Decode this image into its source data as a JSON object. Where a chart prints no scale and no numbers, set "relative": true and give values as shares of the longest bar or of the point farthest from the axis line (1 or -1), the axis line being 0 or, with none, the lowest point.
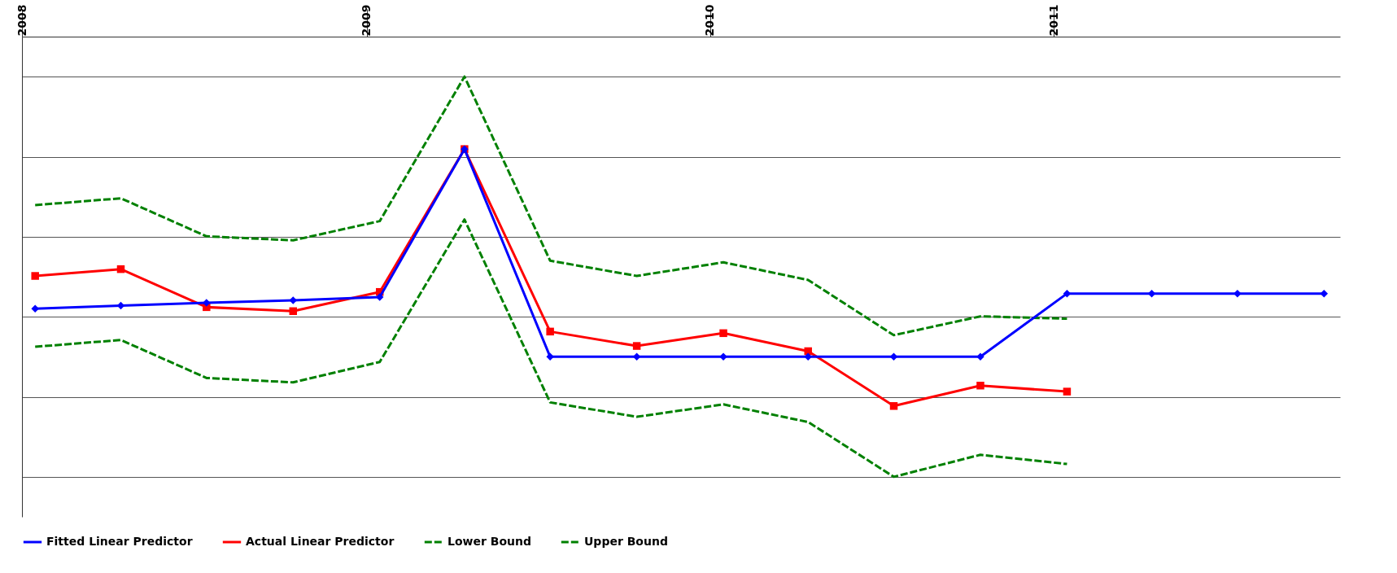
{
  "chart_data": {
    "type": "line",
    "relative": true,
    "x": [
      "2008-01-15",
      "2008-04-15",
      "2008-07-15",
      "2008-10-15",
      "2009-01-15",
      "2009-04-15",
      "2009-07-15",
      "2009-10-15",
      "2010-01-15",
      "2010-04-15",
      "2010-07-15",
      "2010-10-15",
      "2011-01-15",
      "2011-04-15",
      "2011-07-15",
      "2011-10-15"
    ],
    "xlim": [
      "2008",
      "2011-11"
    ],
    "xticks": [
      {
        "value": "2008",
        "label": "2008"
      },
      {
        "value": "2009",
        "label": "2009"
      },
      {
        "value": "2010",
        "label": "2010"
      },
      {
        "value": "2011",
        "label": "2011"
      }
    ],
    "grid": "y",
    "legend": "bottom",
    "series": [
      {
        "name": "Fitted Linear Predictor",
        "color": "#0000ff",
        "marker": "diamond",
        "line_style": "solid",
        "values": [
          0.42,
          0.428,
          0.435,
          0.441,
          0.449,
          0.819,
          0.3,
          0.3,
          0.3,
          0.3,
          0.3,
          0.3,
          0.458,
          0.458,
          0.458,
          0.458
        ]
      },
      {
        "name": "Actual Linear Predictor",
        "color": "#ff0000",
        "marker": "square",
        "line_style": "solid",
        "values": [
          0.502,
          0.519,
          0.424,
          0.414,
          0.462,
          0.819,
          0.363,
          0.327,
          0.359,
          0.314,
          0.177,
          0.228,
          0.213,
          null,
          null,
          null
        ]
      },
      {
        "name": "Lower Bound",
        "color": "#008000",
        "marker": "none",
        "line_style": "dashed",
        "values": [
          0.325,
          0.342,
          0.247,
          0.236,
          0.287,
          0.643,
          0.186,
          0.15,
          0.181,
          0.137,
          0,
          0.055,
          0.032,
          null,
          null,
          null
        ]
      },
      {
        "name": "Upper Bound",
        "color": "#008000",
        "marker": "none",
        "line_style": "dashed",
        "values": [
          0.679,
          0.696,
          0.601,
          0.591,
          0.639,
          1,
          0.54,
          0.502,
          0.536,
          0.492,
          0.354,
          0.401,
          0.395,
          null,
          null,
          null
        ]
      }
    ]
  }
}
